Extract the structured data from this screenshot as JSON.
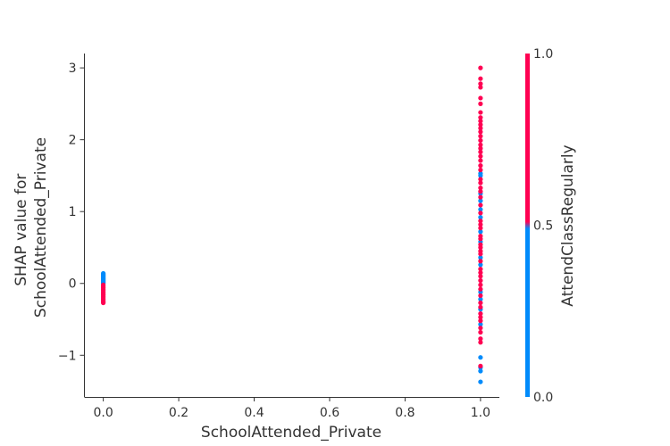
{
  "chart_data": {
    "type": "scatter",
    "title": "",
    "xlabel": "SchoolAttended_Private",
    "ylabel_lines": [
      "SHAP value for",
      "SchoolAttended_Private"
    ],
    "xlim": [
      -0.05,
      1.05
    ],
    "ylim": [
      -1.58,
      3.2
    ],
    "xticks": [
      0.0,
      0.2,
      0.4,
      0.6,
      0.8,
      1.0
    ],
    "xtick_labels": [
      "0.0",
      "0.2",
      "0.4",
      "0.6",
      "0.8",
      "1.0"
    ],
    "yticks": [
      -1,
      0,
      1,
      2,
      3
    ],
    "ytick_labels": [
      "−1",
      "0",
      "1",
      "2",
      "3"
    ],
    "grid": false,
    "colorbar": {
      "label": "AttendClassRegularly",
      "min": 0.0,
      "max": 1.0,
      "ticks": [
        0.0,
        0.5,
        1.0
      ],
      "tick_labels": [
        "0.0",
        "0.5",
        "1.0"
      ],
      "color_low": "#008bfb",
      "color_high": "#ff0052"
    },
    "colors": {
      "low": "#008bfb",
      "high": "#ff0052",
      "axis": "#333333"
    },
    "series": [
      {
        "color_value": 0,
        "points": [
          {
            "x": 0,
            "y": 0.14
          },
          {
            "x": 0,
            "y": 0.13
          },
          {
            "x": 0,
            "y": 0.12
          },
          {
            "x": 0,
            "y": 0.11
          },
          {
            "x": 0,
            "y": 0.1
          },
          {
            "x": 0,
            "y": 0.09
          },
          {
            "x": 0,
            "y": 0.08
          },
          {
            "x": 0,
            "y": 0.07
          },
          {
            "x": 0,
            "y": 0.06
          },
          {
            "x": 0,
            "y": 0.05
          },
          {
            "x": 0,
            "y": 0.04
          },
          {
            "x": 0,
            "y": 0.03
          },
          {
            "x": 0,
            "y": 0.02
          },
          {
            "x": 0,
            "y": 0.01
          },
          {
            "x": 0,
            "y": 0.0
          },
          {
            "x": 1,
            "y": 1.53
          },
          {
            "x": 1,
            "y": 1.5
          },
          {
            "x": 1,
            "y": 1.25
          },
          {
            "x": 1,
            "y": 1.15
          },
          {
            "x": 1,
            "y": 1.03
          },
          {
            "x": 1,
            "y": 0.92
          },
          {
            "x": 1,
            "y": 0.72
          },
          {
            "x": 1,
            "y": 0.58
          },
          {
            "x": 1,
            "y": 0.36
          },
          {
            "x": 1,
            "y": 0.26
          },
          {
            "x": 1,
            "y": -0.12
          },
          {
            "x": 1,
            "y": -0.22
          },
          {
            "x": 1,
            "y": -0.36
          },
          {
            "x": 1,
            "y": -0.57
          },
          {
            "x": 1,
            "y": -1.03
          },
          {
            "x": 1,
            "y": -1.17
          },
          {
            "x": 1,
            "y": -1.22
          },
          {
            "x": 1,
            "y": -1.37
          }
        ]
      },
      {
        "color_value": 1,
        "points": [
          {
            "x": 0,
            "y": -0.02
          },
          {
            "x": 0,
            "y": -0.04
          },
          {
            "x": 0,
            "y": -0.06
          },
          {
            "x": 0,
            "y": -0.08
          },
          {
            "x": 0,
            "y": -0.1
          },
          {
            "x": 0,
            "y": -0.12
          },
          {
            "x": 0,
            "y": -0.14
          },
          {
            "x": 0,
            "y": -0.16
          },
          {
            "x": 0,
            "y": -0.18
          },
          {
            "x": 0,
            "y": -0.2
          },
          {
            "x": 0,
            "y": -0.22
          },
          {
            "x": 0,
            "y": -0.24
          },
          {
            "x": 0,
            "y": -0.26
          },
          {
            "x": 0,
            "y": -0.27
          },
          {
            "x": 1,
            "y": 3.0
          },
          {
            "x": 1,
            "y": 2.85
          },
          {
            "x": 1,
            "y": 2.78
          },
          {
            "x": 1,
            "y": 2.73
          },
          {
            "x": 1,
            "y": 2.58
          },
          {
            "x": 1,
            "y": 2.5
          },
          {
            "x": 1,
            "y": 2.38
          },
          {
            "x": 1,
            "y": 2.31
          },
          {
            "x": 1,
            "y": 2.26
          },
          {
            "x": 1,
            "y": 2.21
          },
          {
            "x": 1,
            "y": 2.16
          },
          {
            "x": 1,
            "y": 2.11
          },
          {
            "x": 1,
            "y": 2.05
          },
          {
            "x": 1,
            "y": 1.99
          },
          {
            "x": 1,
            "y": 1.93
          },
          {
            "x": 1,
            "y": 1.88
          },
          {
            "x": 1,
            "y": 1.83
          },
          {
            "x": 1,
            "y": 1.77
          },
          {
            "x": 1,
            "y": 1.71
          },
          {
            "x": 1,
            "y": 1.64
          },
          {
            "x": 1,
            "y": 1.58
          },
          {
            "x": 1,
            "y": 1.45
          },
          {
            "x": 1,
            "y": 1.4
          },
          {
            "x": 1,
            "y": 1.33
          },
          {
            "x": 1,
            "y": 1.28
          },
          {
            "x": 1,
            "y": 1.2
          },
          {
            "x": 1,
            "y": 1.09
          },
          {
            "x": 1,
            "y": 0.98
          },
          {
            "x": 1,
            "y": 0.87
          },
          {
            "x": 1,
            "y": 0.82
          },
          {
            "x": 1,
            "y": 0.77
          },
          {
            "x": 1,
            "y": 0.66
          },
          {
            "x": 1,
            "y": 0.62
          },
          {
            "x": 1,
            "y": 0.54
          },
          {
            "x": 1,
            "y": 0.5
          },
          {
            "x": 1,
            "y": 0.45
          },
          {
            "x": 1,
            "y": 0.41
          },
          {
            "x": 1,
            "y": 0.31
          },
          {
            "x": 1,
            "y": 0.2
          },
          {
            "x": 1,
            "y": 0.15
          },
          {
            "x": 1,
            "y": 0.1
          },
          {
            "x": 1,
            "y": 0.04
          },
          {
            "x": 1,
            "y": -0.02
          },
          {
            "x": 1,
            "y": -0.08
          },
          {
            "x": 1,
            "y": -0.17
          },
          {
            "x": 1,
            "y": -0.27
          },
          {
            "x": 1,
            "y": -0.33
          },
          {
            "x": 1,
            "y": -0.42
          },
          {
            "x": 1,
            "y": -0.47
          },
          {
            "x": 1,
            "y": -0.52
          },
          {
            "x": 1,
            "y": -0.62
          },
          {
            "x": 1,
            "y": -0.68
          },
          {
            "x": 1,
            "y": -0.77
          },
          {
            "x": 1,
            "y": -0.82
          },
          {
            "x": 1,
            "y": -1.15
          }
        ]
      }
    ]
  }
}
